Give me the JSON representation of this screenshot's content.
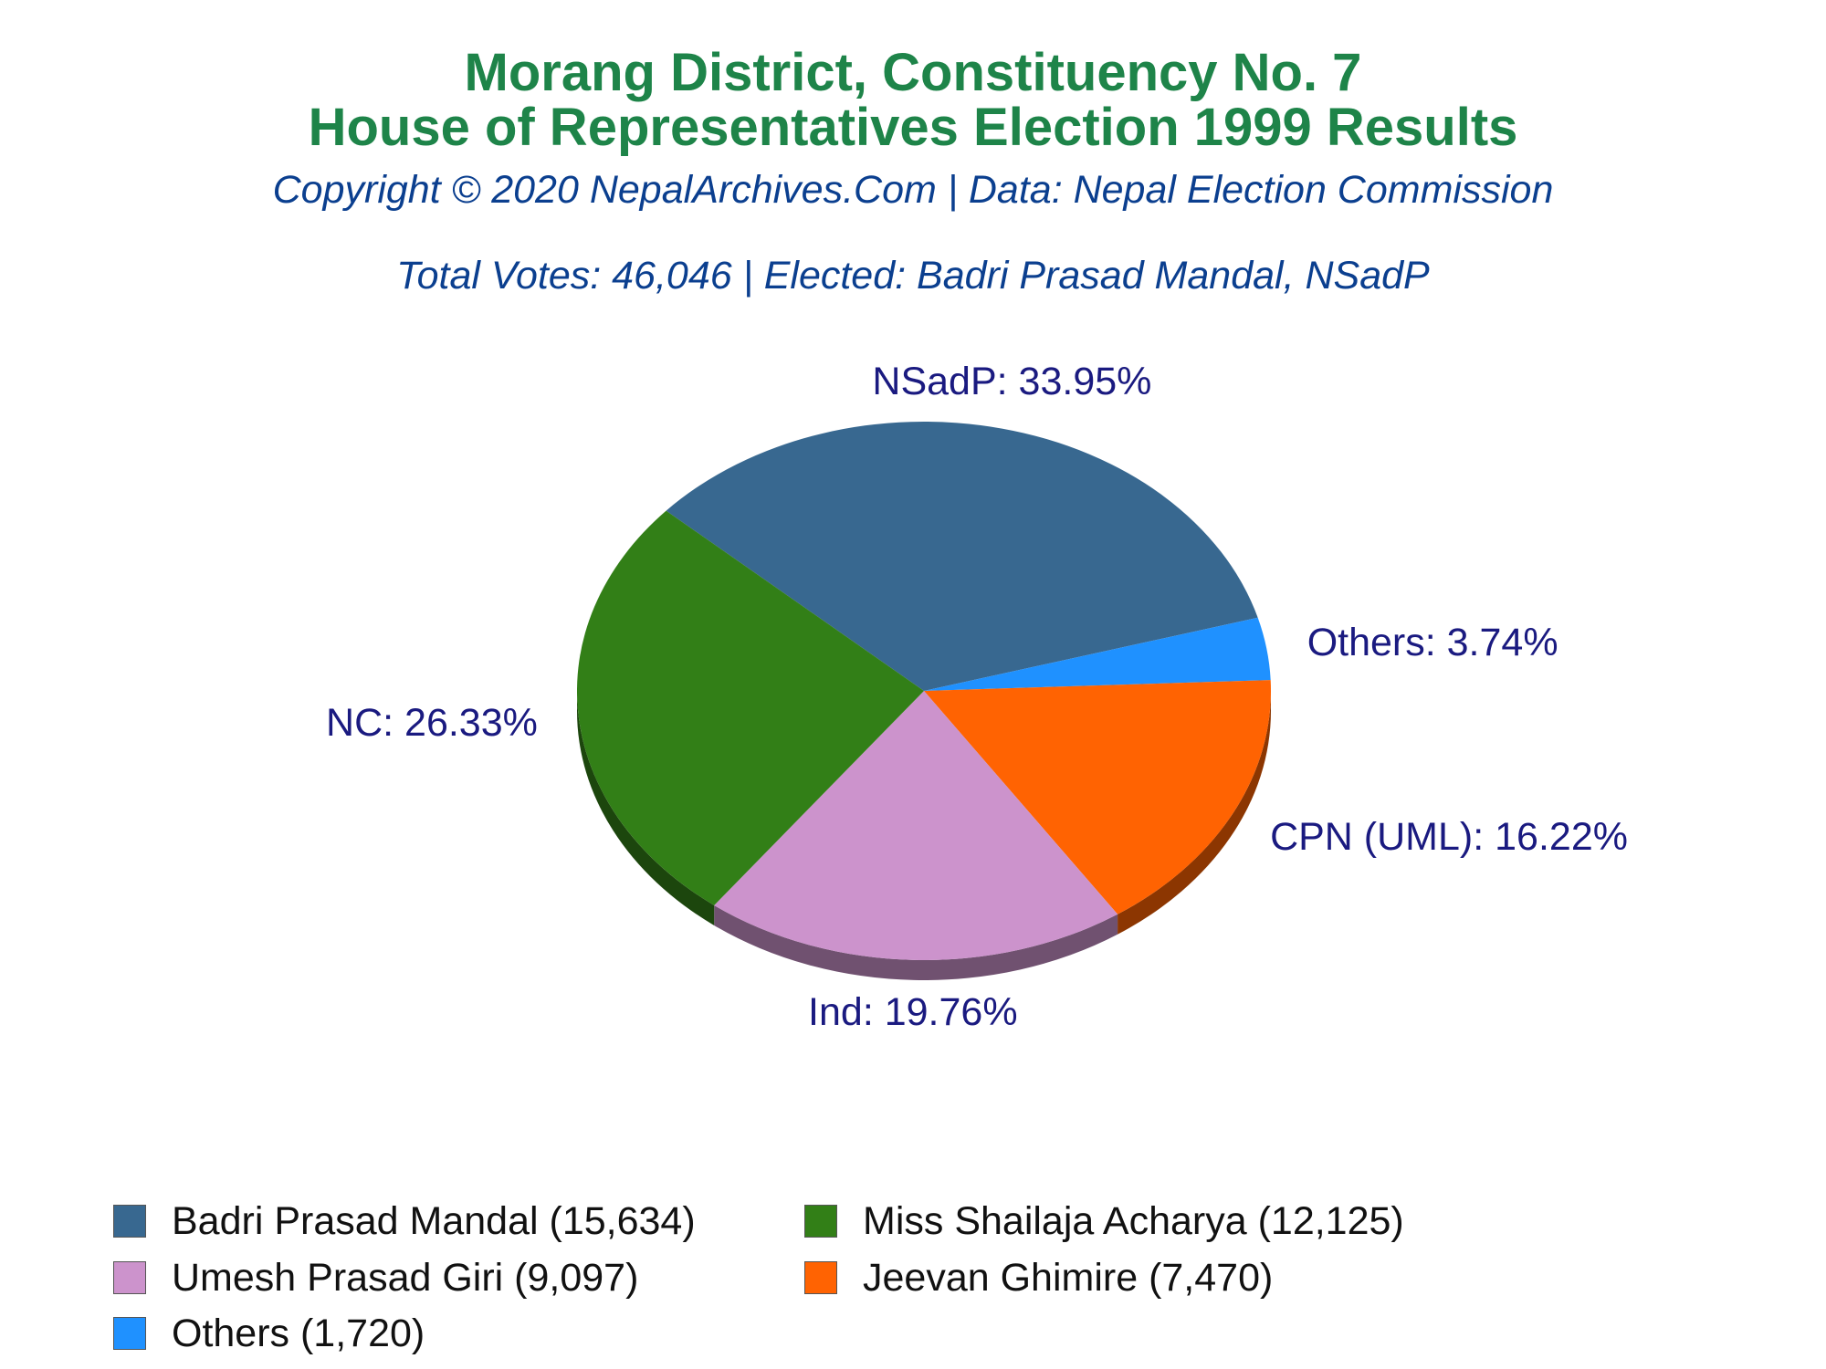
{
  "chart_data": {
    "type": "pie",
    "title": "Morang District, Constituency No. 7",
    "title_line2": "House of Representatives Election 1999 Results",
    "subtitle": "Copyright © 2020 NepalArchives.Com | Data: Nepal Election Commission",
    "subtitle2": "Total Votes: 46,046 | Elected: Badri Prasad Mandal, NSadP",
    "slices": [
      {
        "party": "NSadP",
        "percent": 33.95,
        "label": "NSadP: 33.95%",
        "color": "#386890"
      },
      {
        "party": "Others",
        "percent": 3.74,
        "label": "Others: 3.74%",
        "color": "#1f91ff"
      },
      {
        "party": "CPN (UML)",
        "percent": 16.22,
        "label": "CPN (UML): 16.22%",
        "color": "#ff6302"
      },
      {
        "party": "Ind",
        "percent": 19.76,
        "label": "Ind: 19.76%",
        "color": "#cc93cc"
      },
      {
        "party": "NC",
        "percent": 26.33,
        "label": "NC: 26.33%",
        "color": "#327f17"
      }
    ],
    "legend": [
      {
        "label": "Badri Prasad Mandal (15,634)",
        "votes": 15634,
        "color": "#386890"
      },
      {
        "label": "Miss Shailaja Acharya (12,125)",
        "votes": 12125,
        "color": "#327f17"
      },
      {
        "label": "Umesh Prasad Giri (9,097)",
        "votes": 9097,
        "color": "#cc93cc"
      },
      {
        "label": "Jeevan Ghimire (7,470)",
        "votes": 7470,
        "color": "#ff6302"
      },
      {
        "label": "Others (1,720)",
        "votes": 1720,
        "color": "#1f91ff"
      }
    ],
    "label_color": "#1a1a80",
    "legend_placement": "bottom"
  }
}
